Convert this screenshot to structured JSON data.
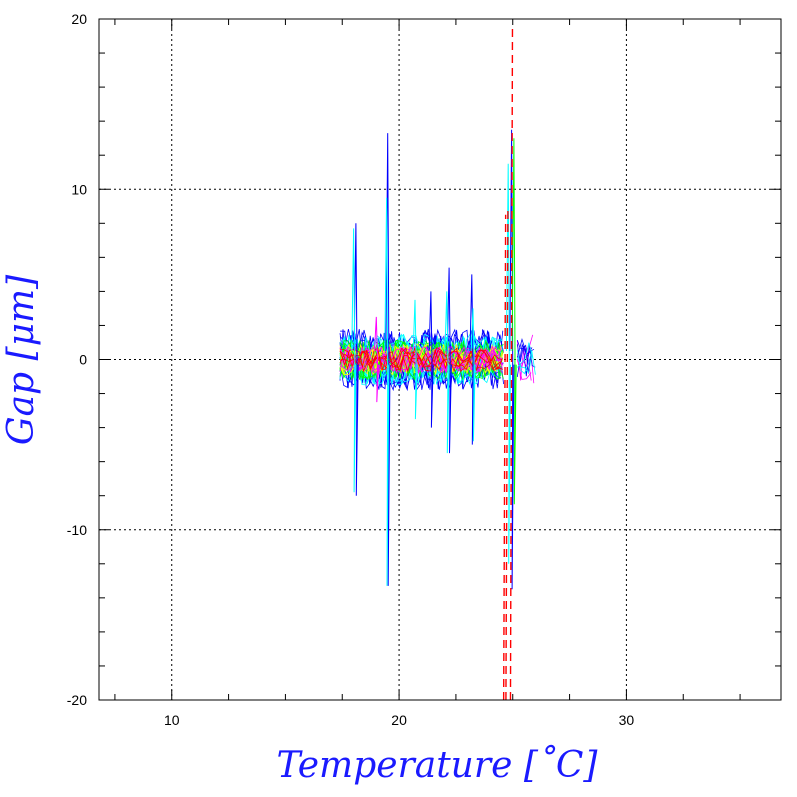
{
  "chart_data": {
    "type": "line",
    "xlabel": "Temperature [˚C]",
    "ylabel": "Gap [μm]",
    "xlim": [
      6.8,
      36.8
    ],
    "ylim": [
      -20,
      20
    ],
    "x_ticks": [
      "10",
      "20",
      "30"
    ],
    "y_ticks": [
      "20",
      "10",
      "0",
      "-10",
      "-20"
    ],
    "grid": true,
    "grid_style": "dotted",
    "series_colors": [
      "#0000ff",
      "#00ffff",
      "#00ff00",
      "#ffff00",
      "#ff0000",
      "#ff00ff",
      "#000080"
    ],
    "vertical_markers": [
      {
        "x": 24.6,
        "y_from": -20,
        "y_to": 8.5,
        "color": "#ff0000",
        "style": "dashed"
      },
      {
        "x": 24.7,
        "y_from": -20,
        "y_to": 9.0,
        "color": "#ff0000",
        "style": "dashed"
      },
      {
        "x": 24.9,
        "y_from": -20,
        "y_to": 19.5,
        "color": "#ff0000",
        "style": "dashed"
      }
    ],
    "spikes": [
      {
        "x": 19.5,
        "y_from": -13.3,
        "y_to": 13.3,
        "color": "#0000ff"
      },
      {
        "x": 19.45,
        "y_from": -13.3,
        "y_to": 9.5,
        "color": "#00ffff"
      },
      {
        "x": 24.95,
        "y_from": -13.5,
        "y_to": 13.5,
        "color": "#0000ff"
      },
      {
        "x": 25.05,
        "y_from": -8.5,
        "y_to": 13.0,
        "color": "#00ff00"
      },
      {
        "x": 24.8,
        "y_from": -12.0,
        "y_to": 11.5,
        "color": "#00ffff"
      },
      {
        "x": 18.1,
        "y_from": -8.0,
        "y_to": 8.0,
        "color": "#0000ff"
      },
      {
        "x": 18.0,
        "y_from": -7.8,
        "y_to": 7.7,
        "color": "#00ffff"
      },
      {
        "x": 22.2,
        "y_from": -5.5,
        "y_to": 5.4,
        "color": "#0000ff"
      },
      {
        "x": 22.1,
        "y_from": -5.5,
        "y_to": 4.0,
        "color": "#00ffff"
      },
      {
        "x": 23.2,
        "y_from": -5.0,
        "y_to": 5.0,
        "color": "#0000ff"
      },
      {
        "x": 23.25,
        "y_from": -4.8,
        "y_to": 3.0,
        "color": "#00ffff"
      },
      {
        "x": 21.4,
        "y_from": -4.0,
        "y_to": 4.0,
        "color": "#0000ff"
      },
      {
        "x": 20.7,
        "y_from": -3.5,
        "y_to": 3.5,
        "color": "#00ffff"
      },
      {
        "x": 19.0,
        "y_from": -2.5,
        "y_to": 2.5,
        "color": "#ff00ff"
      }
    ],
    "bands": [
      {
        "x_from": 17.4,
        "x_to": 24.6,
        "amplitude": 1.8,
        "color": "#0000ff",
        "count": 12
      },
      {
        "x_from": 17.4,
        "x_to": 24.6,
        "amplitude": 1.5,
        "color": "#00ffff",
        "count": 10
      },
      {
        "x_from": 17.4,
        "x_to": 24.6,
        "amplitude": 1.2,
        "color": "#00ff00",
        "count": 8
      },
      {
        "x_from": 17.4,
        "x_to": 24.6,
        "amplitude": 0.9,
        "color": "#ffff00",
        "count": 6
      },
      {
        "x_from": 17.4,
        "x_to": 24.6,
        "amplitude": 0.8,
        "color": "#ff00ff",
        "count": 6
      },
      {
        "x_from": 17.4,
        "x_to": 24.6,
        "amplitude": 0.7,
        "color": "#ff0000",
        "count": 5
      },
      {
        "x_from": 25.2,
        "x_to": 26.0,
        "amplitude": 1.5,
        "color": "#ff00ff",
        "count": 4
      },
      {
        "x_from": 25.2,
        "x_to": 26.0,
        "amplitude": 1.2,
        "color": "#0000ff",
        "count": 4
      },
      {
        "x_from": 25.2,
        "x_to": 26.0,
        "amplitude": 1.0,
        "color": "#00ffff",
        "count": 3
      }
    ]
  }
}
